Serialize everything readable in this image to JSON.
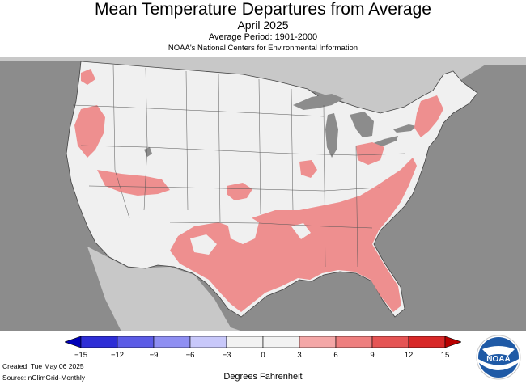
{
  "header": {
    "title": "Mean Temperature Departures from Average",
    "subtitle": "April 2025",
    "period": "Average Period: 1901-2000",
    "agency": "NOAA's National Centers for Environmental Information"
  },
  "legend": {
    "units": "Degrees Fahrenheit",
    "ticks": [
      "-15",
      "-12",
      "-9",
      "-6",
      "-3",
      "0",
      "3",
      "6",
      "9",
      "12",
      "15"
    ],
    "bins": [
      {
        "color": "#0000b8"
      },
      {
        "color": "#2e2ed6"
      },
      {
        "color": "#5c5ce6"
      },
      {
        "color": "#8f8ff2"
      },
      {
        "color": "#c8c8fa"
      },
      {
        "color": "#f2f2f2"
      },
      {
        "color": "#f2f2f2"
      },
      {
        "color": "#f4a7a7"
      },
      {
        "color": "#ee7f7f"
      },
      {
        "color": "#e55454"
      },
      {
        "color": "#d82828"
      },
      {
        "color": "#b80000"
      }
    ]
  },
  "footer": {
    "created": "Created: Tue May 06 2025",
    "source": "Source: nClimGrid-Monthly"
  },
  "logo": {
    "text": "NOAA"
  },
  "colors": {
    "land": "#f0f0f0",
    "background": "#8c8c8c",
    "warm": "#ee8f8f"
  }
}
